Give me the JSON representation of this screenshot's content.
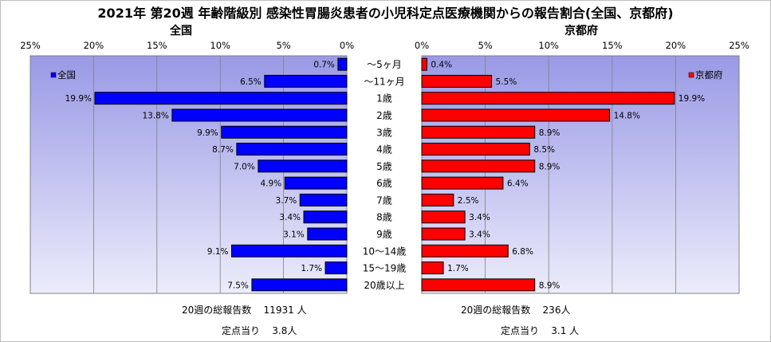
{
  "title": "2021年 第20週 年齢階級別 感染性胃腸炎患者の小児科定点医療機関からの報告割合(全国、京都府)",
  "colors": {
    "national": "#0000ff",
    "kyoto": "#ff0000",
    "plot_bg_top": "#9999e6",
    "plot_bg_bottom": "#ececfb"
  },
  "chart_data": [
    {
      "type": "bar",
      "orientation": "horizontal",
      "title": "全国",
      "legend": "全国",
      "legend_position": "top-left",
      "direction": "right-to-left",
      "xlim": [
        0,
        25
      ],
      "ticks": [
        "25%",
        "20%",
        "15%",
        "10%",
        "5%",
        "0%"
      ],
      "grid": true,
      "categories": [
        "～5ヶ月",
        "～11ヶ月",
        "1歳",
        "2歳",
        "3歳",
        "4歳",
        "5歳",
        "6歳",
        "7歳",
        "8歳",
        "9歳",
        "10～14歳",
        "15～19歳",
        "20歳以上"
      ],
      "values": [
        0.7,
        6.5,
        19.9,
        13.8,
        9.9,
        8.7,
        7.0,
        4.9,
        3.7,
        3.4,
        3.1,
        9.1,
        1.7,
        7.5
      ],
      "labels": [
        "0.7%",
        "6.5%",
        "19.9%",
        "13.8%",
        "9.9%",
        "8.7%",
        "7.0%",
        "4.9%",
        "3.7%",
        "3.4%",
        "3.1%",
        "9.1%",
        "1.7%",
        "7.5%"
      ]
    },
    {
      "type": "bar",
      "orientation": "horizontal",
      "title": "京都府",
      "legend": "京都府",
      "legend_position": "top-right",
      "direction": "left-to-right",
      "xlim": [
        0,
        25
      ],
      "ticks": [
        "0%",
        "5%",
        "10%",
        "15%",
        "20%",
        "25%"
      ],
      "grid": true,
      "categories": [
        "～5ヶ月",
        "～11ヶ月",
        "1歳",
        "2歳",
        "3歳",
        "4歳",
        "5歳",
        "6歳",
        "7歳",
        "8歳",
        "9歳",
        "10～14歳",
        "15～19歳",
        "20歳以上"
      ],
      "values": [
        0.4,
        5.5,
        19.9,
        14.8,
        8.9,
        8.5,
        8.9,
        6.4,
        2.5,
        3.4,
        3.4,
        6.8,
        1.7,
        8.9
      ],
      "labels": [
        "0.4%",
        "5.5%",
        "19.9%",
        "14.8%",
        "8.9%",
        "8.5%",
        "8.9%",
        "6.4%",
        "2.5%",
        "3.4%",
        "3.4%",
        "6.8%",
        "1.7%",
        "8.9%"
      ]
    }
  ],
  "summary": {
    "national": {
      "total_label": "20週の総報告数",
      "total_value": "11931 人",
      "per_label": "定点当り",
      "per_value": "3.8人"
    },
    "kyoto": {
      "total_label": "20週の総報告数",
      "total_value": "236人",
      "per_label": "定点当り",
      "per_value": "3.1 人"
    }
  }
}
